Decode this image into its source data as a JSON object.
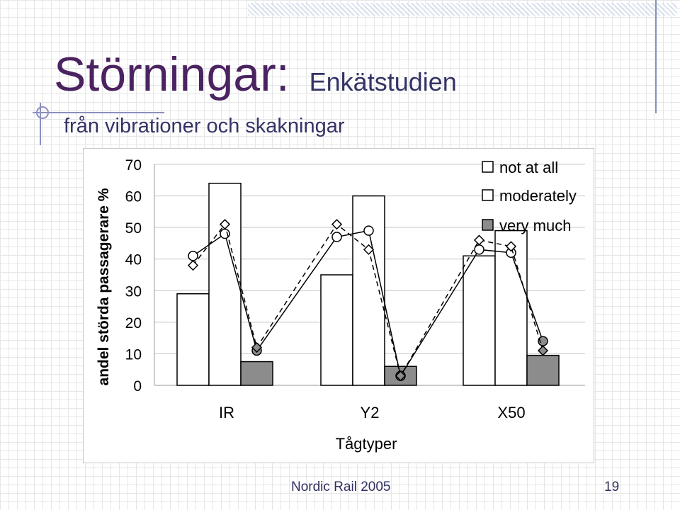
{
  "slide": {
    "title": "Störningar:",
    "title_sub": "Enkätstudien",
    "subtitle": "från vibrationer och skakningar",
    "footer": "Nordic Rail 2005",
    "page_number": "19"
  },
  "chart_data": {
    "type": "bar",
    "categories": [
      "IR",
      "Y2",
      "X50"
    ],
    "xlabel": "Tågtyper",
    "ylabel": "andel störda passagerare %",
    "ylim": [
      0,
      70
    ],
    "yticks": [
      0,
      10,
      20,
      30,
      40,
      50,
      60,
      70
    ],
    "grid": true,
    "legend_position": "top-right",
    "series": [
      {
        "name": "not at all",
        "values": [
          29,
          35,
          41
        ],
        "color": "#ffffff"
      },
      {
        "name": "moderately",
        "values": [
          64,
          60,
          49
        ],
        "color": "#ffffff"
      },
      {
        "name": "very much",
        "values": [
          7.5,
          6,
          9.5
        ],
        "color": "#8c8c8c"
      }
    ],
    "line_series": [
      {
        "style": "solid",
        "marker": "circle",
        "points": [
          [
            0,
            41
          ],
          [
            0,
            48
          ],
          [
            0,
            11
          ],
          [
            1,
            47
          ],
          [
            1,
            49
          ],
          [
            1,
            3
          ],
          [
            2,
            43
          ],
          [
            2,
            42
          ],
          [
            2,
            14
          ]
        ]
      },
      {
        "style": "dashed",
        "marker": "diamond",
        "points": [
          [
            0,
            38
          ],
          [
            0,
            51
          ],
          [
            0,
            12
          ],
          [
            1,
            51
          ],
          [
            1,
            43
          ],
          [
            1,
            3
          ],
          [
            2,
            46
          ],
          [
            2,
            44
          ],
          [
            2,
            11
          ]
        ]
      }
    ]
  }
}
